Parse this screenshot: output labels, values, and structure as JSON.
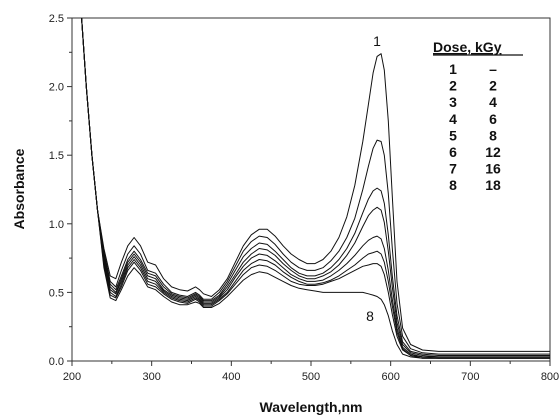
{
  "chart_data": {
    "type": "line",
    "title": "",
    "xlabel": "Wavelength,nm",
    "ylabel": "Absorbance",
    "xlim": [
      200,
      800
    ],
    "ylim": [
      0.0,
      2.5
    ],
    "xticks": [
      200,
      300,
      400,
      500,
      600,
      700,
      800
    ],
    "xtick_labels": [
      "200",
      "300",
      "400",
      "500",
      "600",
      "700",
      "800"
    ],
    "yticks": [
      0.0,
      0.5,
      1.0,
      1.5,
      2.0,
      2.5
    ],
    "ytick_labels": [
      "0.0",
      "0.5",
      "1.0",
      "1.5",
      "2.0",
      "2.5"
    ],
    "grid": false,
    "legend": {
      "placement": "top-right",
      "header": "Dose, kGy",
      "rows": [
        [
          "1",
          "–"
        ],
        [
          "2",
          "2"
        ],
        [
          "3",
          "4"
        ],
        [
          "4",
          "6"
        ],
        [
          "5",
          "8"
        ],
        [
          "6",
          "12"
        ],
        [
          "7",
          "16"
        ],
        [
          "8",
          "18"
        ]
      ]
    },
    "curve_labels": [
      {
        "text": "1",
        "series": "1"
      },
      {
        "text": "8",
        "series": "8"
      }
    ],
    "x": [
      205,
      212,
      218,
      225,
      232,
      240,
      248,
      255,
      262,
      270,
      278,
      286,
      295,
      305,
      315,
      325,
      335,
      345,
      355,
      360,
      365,
      375,
      385,
      395,
      405,
      415,
      425,
      435,
      445,
      455,
      465,
      475,
      485,
      495,
      505,
      515,
      525,
      535,
      545,
      555,
      565,
      572,
      578,
      583,
      588,
      592,
      597,
      602,
      608,
      615,
      625,
      640,
      660,
      680,
      700,
      720,
      740,
      760,
      780,
      800
    ],
    "series": [
      {
        "name": "1",
        "values": [
          2.65,
          2.5,
          2.0,
          1.5,
          1.1,
          0.82,
          0.62,
          0.6,
          0.72,
          0.84,
          0.9,
          0.84,
          0.72,
          0.7,
          0.6,
          0.54,
          0.52,
          0.51,
          0.54,
          0.52,
          0.49,
          0.47,
          0.52,
          0.6,
          0.72,
          0.84,
          0.92,
          0.96,
          0.96,
          0.91,
          0.84,
          0.78,
          0.74,
          0.71,
          0.71,
          0.74,
          0.8,
          0.9,
          1.05,
          1.28,
          1.6,
          1.87,
          2.1,
          2.22,
          2.24,
          2.12,
          1.75,
          1.2,
          0.58,
          0.24,
          0.12,
          0.08,
          0.07,
          0.07,
          0.07,
          0.07,
          0.07,
          0.07,
          0.07,
          0.07
        ]
      },
      {
        "name": "2",
        "values": [
          2.65,
          2.5,
          2.0,
          1.5,
          1.1,
          0.8,
          0.58,
          0.54,
          0.66,
          0.78,
          0.84,
          0.78,
          0.66,
          0.64,
          0.56,
          0.5,
          0.48,
          0.47,
          0.5,
          0.48,
          0.45,
          0.45,
          0.5,
          0.58,
          0.69,
          0.8,
          0.87,
          0.91,
          0.9,
          0.85,
          0.78,
          0.72,
          0.68,
          0.66,
          0.66,
          0.68,
          0.73,
          0.8,
          0.9,
          1.04,
          1.25,
          1.42,
          1.55,
          1.61,
          1.6,
          1.5,
          1.22,
          0.82,
          0.42,
          0.18,
          0.09,
          0.06,
          0.05,
          0.05,
          0.05,
          0.05,
          0.05,
          0.05,
          0.05,
          0.05
        ]
      },
      {
        "name": "3",
        "values": [
          2.65,
          2.5,
          2.0,
          1.5,
          1.1,
          0.78,
          0.56,
          0.52,
          0.62,
          0.74,
          0.8,
          0.74,
          0.64,
          0.62,
          0.54,
          0.49,
          0.47,
          0.46,
          0.49,
          0.47,
          0.44,
          0.44,
          0.48,
          0.56,
          0.66,
          0.76,
          0.82,
          0.86,
          0.85,
          0.8,
          0.74,
          0.68,
          0.64,
          0.62,
          0.62,
          0.64,
          0.68,
          0.74,
          0.82,
          0.93,
          1.08,
          1.18,
          1.24,
          1.26,
          1.24,
          1.15,
          0.92,
          0.62,
          0.33,
          0.14,
          0.07,
          0.05,
          0.04,
          0.04,
          0.04,
          0.04,
          0.04,
          0.04,
          0.04,
          0.04
        ]
      },
      {
        "name": "4",
        "values": [
          2.65,
          2.5,
          2.0,
          1.5,
          1.1,
          0.76,
          0.54,
          0.5,
          0.6,
          0.72,
          0.78,
          0.72,
          0.62,
          0.6,
          0.52,
          0.48,
          0.46,
          0.45,
          0.48,
          0.46,
          0.43,
          0.43,
          0.47,
          0.54,
          0.63,
          0.72,
          0.78,
          0.82,
          0.81,
          0.77,
          0.71,
          0.66,
          0.62,
          0.6,
          0.6,
          0.62,
          0.65,
          0.7,
          0.77,
          0.86,
          0.98,
          1.06,
          1.1,
          1.12,
          1.1,
          1.01,
          0.8,
          0.54,
          0.28,
          0.12,
          0.06,
          0.04,
          0.03,
          0.03,
          0.03,
          0.03,
          0.03,
          0.03,
          0.03,
          0.03
        ]
      },
      {
        "name": "5",
        "values": [
          2.65,
          2.5,
          2.0,
          1.5,
          1.1,
          0.74,
          0.52,
          0.49,
          0.58,
          0.7,
          0.76,
          0.7,
          0.6,
          0.58,
          0.51,
          0.47,
          0.45,
          0.44,
          0.47,
          0.45,
          0.42,
          0.42,
          0.46,
          0.52,
          0.61,
          0.69,
          0.75,
          0.78,
          0.77,
          0.73,
          0.68,
          0.63,
          0.6,
          0.58,
          0.58,
          0.59,
          0.62,
          0.66,
          0.71,
          0.77,
          0.84,
          0.88,
          0.9,
          0.91,
          0.89,
          0.82,
          0.66,
          0.45,
          0.24,
          0.1,
          0.05,
          0.03,
          0.03,
          0.03,
          0.03,
          0.03,
          0.03,
          0.03,
          0.03,
          0.03
        ]
      },
      {
        "name": "6",
        "values": [
          2.65,
          2.5,
          2.0,
          1.5,
          1.1,
          0.72,
          0.5,
          0.47,
          0.56,
          0.68,
          0.74,
          0.68,
          0.58,
          0.56,
          0.5,
          0.46,
          0.44,
          0.43,
          0.46,
          0.44,
          0.41,
          0.41,
          0.45,
          0.5,
          0.58,
          0.66,
          0.71,
          0.74,
          0.73,
          0.7,
          0.65,
          0.61,
          0.58,
          0.56,
          0.56,
          0.57,
          0.59,
          0.62,
          0.66,
          0.7,
          0.75,
          0.78,
          0.79,
          0.8,
          0.78,
          0.72,
          0.58,
          0.4,
          0.21,
          0.09,
          0.04,
          0.03,
          0.02,
          0.02,
          0.02,
          0.02,
          0.02,
          0.02,
          0.02,
          0.02
        ]
      },
      {
        "name": "7",
        "values": [
          2.65,
          2.5,
          2.0,
          1.5,
          1.1,
          0.7,
          0.48,
          0.46,
          0.54,
          0.66,
          0.72,
          0.66,
          0.56,
          0.54,
          0.49,
          0.45,
          0.43,
          0.42,
          0.45,
          0.43,
          0.4,
          0.4,
          0.44,
          0.49,
          0.56,
          0.63,
          0.68,
          0.7,
          0.69,
          0.66,
          0.62,
          0.58,
          0.56,
          0.55,
          0.55,
          0.56,
          0.58,
          0.6,
          0.63,
          0.66,
          0.69,
          0.7,
          0.71,
          0.71,
          0.69,
          0.63,
          0.5,
          0.34,
          0.18,
          0.08,
          0.04,
          0.02,
          0.02,
          0.02,
          0.02,
          0.02,
          0.02,
          0.02,
          0.02,
          0.02
        ]
      },
      {
        "name": "8",
        "values": [
          2.65,
          2.5,
          2.0,
          1.5,
          1.1,
          0.68,
          0.46,
          0.44,
          0.52,
          0.62,
          0.68,
          0.63,
          0.54,
          0.52,
          0.47,
          0.43,
          0.41,
          0.41,
          0.43,
          0.42,
          0.39,
          0.39,
          0.42,
          0.47,
          0.53,
          0.59,
          0.63,
          0.65,
          0.64,
          0.61,
          0.58,
          0.55,
          0.53,
          0.52,
          0.51,
          0.5,
          0.5,
          0.5,
          0.5,
          0.5,
          0.5,
          0.49,
          0.48,
          0.47,
          0.45,
          0.41,
          0.33,
          0.22,
          0.12,
          0.05,
          0.03,
          0.02,
          0.02,
          0.02,
          0.02,
          0.02,
          0.02,
          0.02,
          0.02,
          0.02
        ]
      }
    ]
  }
}
